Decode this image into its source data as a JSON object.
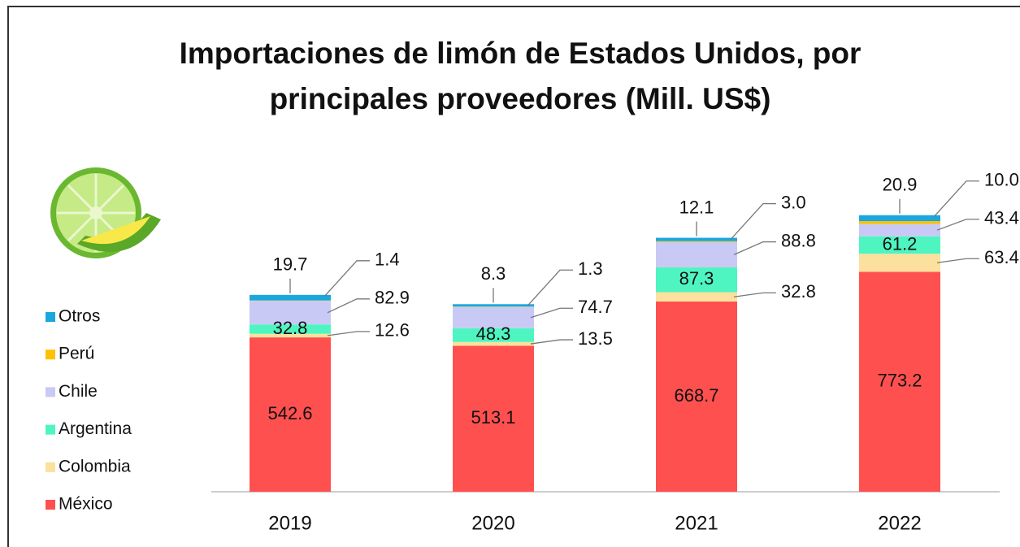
{
  "chart_data": {
    "type": "stacked-bar",
    "title": "Importaciones de limón de Estados Unidos, por principales proveedores (Mill. US$)",
    "categories": [
      "2019",
      "2020",
      "2021",
      "2022"
    ],
    "series": [
      {
        "name": "México",
        "color": "#ff5050",
        "values": [
          542.6,
          513.1,
          668.7,
          773.2
        ],
        "value_labels": [
          "542.6",
          "513.1",
          "668.7",
          "773.2"
        ]
      },
      {
        "name": "Colombia",
        "color": "#fbe09e",
        "values": [
          12.6,
          13.5,
          32.8,
          63.4
        ],
        "value_labels": [
          "12.6",
          "13.5",
          "32.8",
          "63.4"
        ]
      },
      {
        "name": "Argentina",
        "color": "#4ef5c0",
        "values": [
          32.8,
          48.3,
          87.3,
          61.2
        ],
        "value_labels": [
          "32.8",
          "48.3",
          "87.3",
          "61.2"
        ]
      },
      {
        "name": "Chile",
        "color": "#c9c9f5",
        "values": [
          82.9,
          74.7,
          88.8,
          43.4
        ],
        "value_labels": [
          "82.9",
          "74.7",
          "88.8",
          "43.4"
        ]
      },
      {
        "name": "Perú",
        "color": "#ffc000",
        "values": [
          1.4,
          1.3,
          3.0,
          10.0
        ],
        "value_labels": [
          "1.4",
          "1.3",
          "3.0",
          "10.0"
        ]
      },
      {
        "name": "Otros",
        "color": "#1aa7e0",
        "values": [
          19.7,
          8.3,
          12.1,
          20.9
        ],
        "value_labels": [
          "19.7",
          "8.3",
          "12.1",
          "20.9"
        ]
      }
    ]
  }
}
